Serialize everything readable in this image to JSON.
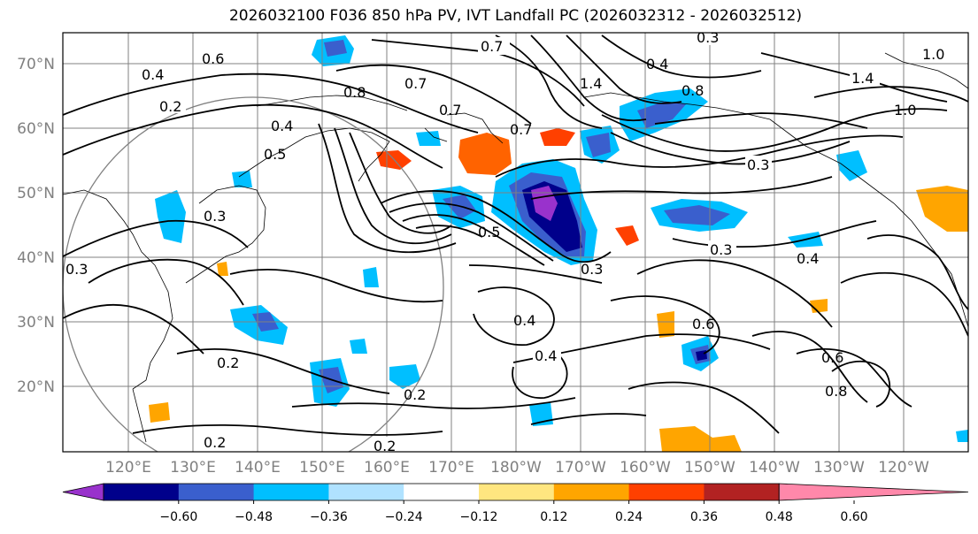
{
  "title": "2026032100 F036 850 hPa PV, IVT Landfall PC (2026032312 - 2026032512)",
  "lat_labels": [
    "70°N",
    "60°N",
    "50°N",
    "40°N",
    "30°N",
    "20°N"
  ],
  "lon_labels": [
    "120°E",
    "130°E",
    "140°E",
    "150°E",
    "160°E",
    "170°E",
    "180°W",
    "170°W",
    "160°W",
    "150°W",
    "140°W",
    "130°W",
    "120°W"
  ],
  "colorbar": {
    "ticks": [
      "−0.60",
      "−0.48",
      "−0.36",
      "−0.24",
      "−0.12",
      "0.12",
      "0.24",
      "0.36",
      "0.48",
      "0.60"
    ],
    "colors": [
      "#9932cc",
      "#00008b",
      "#3a5fcd",
      "#00bfff",
      "#b0e2ff",
      "#ffffff",
      "#ffe680",
      "#ffa500",
      "#ff4000",
      "#b22222",
      "#ff88aa"
    ]
  },
  "colors": {
    "contour": "#000000",
    "coast": "#000000",
    "grid": "#808080",
    "circle": "#808080"
  },
  "contour_labels": [
    "0.7",
    "0.3",
    "1.0",
    "0.4",
    "0.6",
    "0.4",
    "0.7",
    "1.4",
    "0.8",
    "1.4",
    "0.8",
    "0.7",
    "0.2",
    "0.4",
    "0.5",
    "0.7",
    "1.0",
    "0.3",
    "0.3",
    "0.5",
    "0.3",
    "0.4",
    "0.3",
    "0.2",
    "0.4",
    "0.2",
    "0.2",
    "0.2",
    "0.8",
    "0.6",
    "0.3",
    "0.4",
    "0.6"
  ]
}
